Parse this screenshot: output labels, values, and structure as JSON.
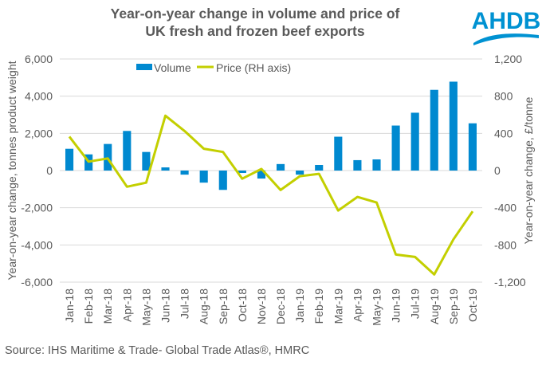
{
  "colors": {
    "volume": "#0089D0",
    "price": "#C3CF00",
    "grid": "#D9D9D9",
    "logo": "#0092D2"
  },
  "logo_text": "AHDB",
  "source": "Source: IHS Maritime & Trade- Global Trade Atlas®, HMRC",
  "chart_data": {
    "type": "bar+line",
    "title": "Year-on-year change in volume and price of UK fresh and frozen beef exports",
    "title_lines": [
      "Year-on-year change in volume and price of",
      "UK fresh and frozen beef exports"
    ],
    "categories": [
      "Jan-18",
      "Feb-18",
      "Mar-18",
      "Apr-18",
      "May-18",
      "Jun-18",
      "Jul-18",
      "Aug-18",
      "Sep-18",
      "Oct-18",
      "Nov-18",
      "Dec-18",
      "Jan-19",
      "Feb-19",
      "Mar-19",
      "Apr-19",
      "May-19",
      "Jun-19",
      "Jul-19",
      "Aug-19",
      "Sep-19",
      "Oct-19"
    ],
    "series": [
      {
        "name": "Volume",
        "type": "bar",
        "axis": "left",
        "values": [
          1170,
          870,
          1430,
          2130,
          1000,
          170,
          -220,
          -650,
          -1040,
          -130,
          -430,
          350,
          -220,
          300,
          1820,
          560,
          600,
          2420,
          3110,
          4340,
          4780,
          2540
        ]
      },
      {
        "name": "Price (RH axis)",
        "type": "line",
        "axis": "right",
        "values": [
          365,
          96,
          130,
          -174,
          -130,
          590,
          425,
          235,
          200,
          -87,
          17,
          -209,
          -61,
          -35,
          -430,
          -284,
          -344,
          -903,
          -929,
          -1118,
          -740,
          -439
        ]
      }
    ],
    "ylabel": "Year-on-year change, tonnes product weight",
    "y2label": "Year-on-year change, £/tonne",
    "ylim": [
      -6000,
      6000
    ],
    "y2lim": [
      -1200,
      1200
    ],
    "yticks": [
      "6,000",
      "4,000",
      "2,000",
      "0",
      "-2,000",
      "-4,000",
      "-6,000"
    ],
    "y2ticks": [
      "1,200",
      "800",
      "400",
      "0",
      "-400",
      "-800",
      "-1,200"
    ],
    "legend": {
      "position": "top-center",
      "entries": [
        "Volume",
        "Price (RH axis)"
      ]
    },
    "grid": true
  }
}
